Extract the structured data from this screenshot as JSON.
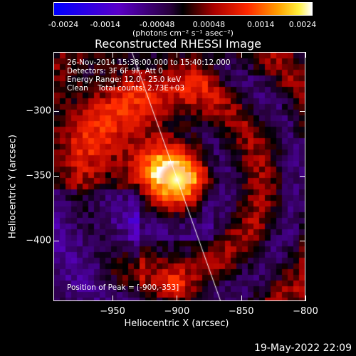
{
  "colorbar": {
    "ticks": [
      "-0.0024",
      "-0.0014",
      "-0.00048",
      "0.00048",
      "0.0014",
      "0.0024"
    ],
    "units": "(photons cm⁻² s⁻¹ asec⁻²)"
  },
  "title": "Reconstructed RHESSI Image",
  "info": {
    "time": "26-Nov-2014 15:38:00.000 to 15:40:12.000",
    "detectors": "Detectors: 3F 6F 9F, Att 0",
    "energy": "Energy Range: 12.0 - 25.0 keV",
    "clean": "Clean    Total counts: 2.73E+03"
  },
  "peak": "Position of Peak = [-900,-353]",
  "axes": {
    "xlabel": "Heliocentric X (arcsec)",
    "ylabel": "Heliocentric Y (arcsec)",
    "xticks": [
      "-950",
      "-900",
      "-850",
      "-800"
    ],
    "yticks": [
      "-300",
      "-350",
      "-400"
    ],
    "xlim": [
      -996,
      -800
    ],
    "ylim": [
      -447,
      -254
    ]
  },
  "timestamp": "19-May-2022 22:09"
}
